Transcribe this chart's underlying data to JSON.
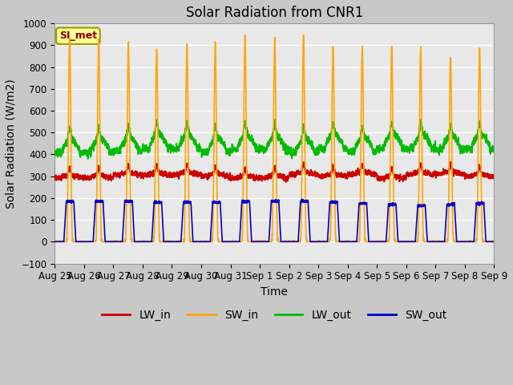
{
  "title": "Solar Radiation from CNR1",
  "xlabel": "Time",
  "ylabel": "Solar Radiation (W/m2)",
  "ylim": [
    -100,
    1000
  ],
  "x_tick_labels": [
    "Aug 25",
    "Aug 26",
    "Aug 27",
    "Aug 28",
    "Aug 29",
    "Aug 30",
    "Aug 31",
    "Sep 1",
    "Sep 2",
    "Sep 3",
    "Sep 4",
    "Sep 5",
    "Sep 6",
    "Sep 7",
    "Sep 8",
    "Sep 9"
  ],
  "fig_bg_color": "#c8c8c8",
  "plot_bg_color": "#e8e8e8",
  "legend_label": "SI_met",
  "series": {
    "LW_in": {
      "color": "#cc0000",
      "linewidth": 1.2
    },
    "SW_in": {
      "color": "#ffa500",
      "linewidth": 1.2
    },
    "LW_out": {
      "color": "#00bb00",
      "linewidth": 1.2
    },
    "SW_out": {
      "color": "#0000cc",
      "linewidth": 1.2
    }
  },
  "n_days": 15,
  "pts_per_day": 288,
  "SW_in_peaks": [
    930,
    920,
    910,
    880,
    900,
    905,
    940,
    930,
    940,
    900,
    890,
    890,
    880,
    855,
    890
  ],
  "SW_out_peaks": [
    185,
    185,
    185,
    180,
    180,
    180,
    185,
    185,
    185,
    180,
    175,
    170,
    165,
    170,
    175
  ],
  "LW_in_base": 300,
  "LW_out_base": 430,
  "title_fontsize": 12,
  "axis_label_fontsize": 10,
  "tick_fontsize": 8.5,
  "legend_fontsize": 10
}
